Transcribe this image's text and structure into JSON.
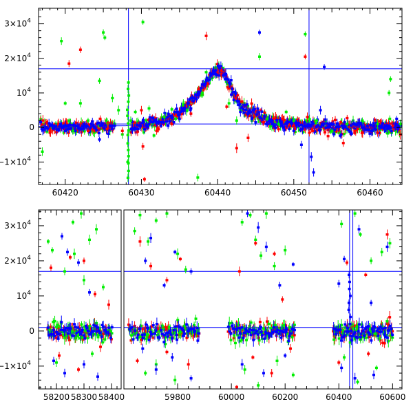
{
  "chart_data": [
    {
      "type": "scatter",
      "panel": "top",
      "xlim": [
        60416.5,
        60464.2
      ],
      "ylim": [
        -16500,
        34500
      ],
      "x_ticks": [
        60420,
        60430,
        60440,
        60450,
        60460
      ],
      "x_tick_labels": [
        "60420",
        "60430",
        "60440",
        "60450",
        "60460"
      ],
      "y_ticks": [
        -10000,
        0,
        10000,
        20000,
        30000
      ],
      "y_tick_labels": [
        {
          "mant": "−1×10",
          "exp": "4"
        },
        {
          "mant": "0",
          "exp": ""
        },
        {
          "mant": "10",
          "exp": "4"
        },
        {
          "mant": "2×10",
          "exp": "4"
        },
        {
          "mant": "3×10",
          "exp": "4"
        }
      ],
      "hlines": [
        17000,
        1000
      ],
      "vlines": [
        60428.3,
        60452.0
      ],
      "colors": {
        "g": "#00ee00",
        "r": "#ff0000",
        "b": "#0000ff"
      },
      "model_curve": [
        [
          60416.5,
          300
        ],
        [
          60428,
          500
        ],
        [
          60432,
          1500
        ],
        [
          60435,
          4500
        ],
        [
          60437.5,
          10000
        ],
        [
          60439,
          15000
        ],
        [
          60440.1,
          17200
        ],
        [
          60441,
          15500
        ],
        [
          60442.5,
          8500
        ],
        [
          60444,
          5000
        ],
        [
          60447,
          2000
        ],
        [
          60452,
          700
        ],
        [
          60464.2,
          300
        ]
      ],
      "series": [
        {
          "color": "g",
          "points": [
            [
              60417.0,
              -7000
            ],
            [
              60419.5,
              25000
            ],
            [
              60420.0,
              7000
            ],
            [
              60420.5,
              2000
            ],
            [
              60421.0,
              -1000
            ],
            [
              60422.0,
              7000
            ],
            [
              60423.0,
              2000
            ],
            [
              60424.5,
              13500
            ],
            [
              60425.0,
              27500
            ],
            [
              60425.2,
              26000
            ],
            [
              60425.4,
              2000
            ],
            [
              60426.2,
              8500
            ],
            [
              60426.5,
              1000
            ],
            [
              60427.0,
              5000
            ],
            [
              60427.5,
              -2000
            ],
            [
              60428.2,
              -10000
            ],
            [
              60428.3,
              13000
            ],
            [
              60428.6,
              2000
            ],
            [
              60429.2,
              4500
            ],
            [
              60430.2,
              30500
            ],
            [
              60431.0,
              5500
            ],
            [
              60431.5,
              1000
            ],
            [
              60433.0,
              3000
            ],
            [
              60434.5,
              2500
            ],
            [
              60436.0,
              5000
            ],
            [
              60437.4,
              -14500
            ],
            [
              60438.0,
              10000
            ],
            [
              60438.5,
              16000
            ],
            [
              60441.5,
              7000
            ],
            [
              60442.5,
              2000
            ],
            [
              60443.0,
              5000
            ],
            [
              60444.5,
              2000
            ],
            [
              60445.5,
              20500
            ],
            [
              60446.5,
              2500
            ],
            [
              60448.0,
              1000
            ],
            [
              60449.0,
              4500
            ],
            [
              60450.0,
              2000
            ],
            [
              60451.5,
              27000
            ],
            [
              60453.0,
              2000
            ],
            [
              60455.0,
              -1000
            ],
            [
              60457.0,
              1000
            ],
            [
              60459.0,
              2000
            ],
            [
              60461.0,
              1000
            ],
            [
              60462.5,
              10000
            ],
            [
              60462.7,
              14000
            ],
            [
              60462.6,
              2500
            ],
            [
              60464.0,
              1000
            ]
          ]
        },
        {
          "color": "r",
          "points": [
            [
              60418.0,
              -1500
            ],
            [
              60420.5,
              18500
            ],
            [
              60422.0,
              22500
            ],
            [
              60423.0,
              -1000
            ],
            [
              60425.5,
              -500
            ],
            [
              60427.5,
              -1000
            ],
            [
              60430.0,
              5000
            ],
            [
              60430.2,
              -5500
            ],
            [
              60430.4,
              -15000
            ],
            [
              60432.0,
              -1000
            ],
            [
              60434.0,
              1000
            ],
            [
              60436.5,
              4000
            ],
            [
              60437.5,
              11000
            ],
            [
              60438.5,
              26500
            ],
            [
              60440.5,
              16500
            ],
            [
              60441.2,
              6000
            ],
            [
              60442.5,
              -6000
            ],
            [
              60444.0,
              -3000
            ],
            [
              60446.0,
              1500
            ],
            [
              60448.0,
              -500
            ],
            [
              60450.0,
              500
            ],
            [
              60451.5,
              20500
            ],
            [
              60452.5,
              -1000
            ],
            [
              60454.5,
              -2500
            ],
            [
              60456.5,
              -4500
            ],
            [
              60458.0,
              -1000
            ],
            [
              60461.0,
              -1500
            ],
            [
              60463.0,
              500
            ]
          ]
        },
        {
          "color": "b",
          "points": [
            [
              60418.0,
              500
            ],
            [
              60420.0,
              -1000
            ],
            [
              60422.5,
              1000
            ],
            [
              60424.5,
              -3500
            ],
            [
              60426.5,
              500
            ],
            [
              60428.8,
              -500
            ],
            [
              60431.5,
              1500
            ],
            [
              60433.5,
              500
            ],
            [
              60435.0,
              2500
            ],
            [
              60436.5,
              5500
            ],
            [
              60437.5,
              9500
            ],
            [
              60438.5,
              13500
            ],
            [
              60439.5,
              16500
            ],
            [
              60440.2,
              17200
            ],
            [
              60441.0,
              14000
            ],
            [
              60441.8,
              9500
            ],
            [
              60443.0,
              4500
            ],
            [
              60444.5,
              2500
            ],
            [
              60445.5,
              27500
            ],
            [
              60446.5,
              1000
            ],
            [
              60448.5,
              500
            ],
            [
              60450.0,
              -1000
            ],
            [
              60451.0,
              -5000
            ],
            [
              60452.3,
              -8500
            ],
            [
              60452.6,
              -13000
            ],
            [
              60453.5,
              5000
            ],
            [
              60454.0,
              17500
            ],
            [
              60455.0,
              1000
            ],
            [
              60457.5,
              -1500
            ],
            [
              60460.5,
              500
            ],
            [
              60462.0,
              -1000
            ],
            [
              60463.5,
              2500
            ]
          ]
        }
      ]
    },
    {
      "type": "scatter",
      "panel": "bottom",
      "segments": [
        {
          "xlim": [
            58135,
            58435
          ],
          "x_ticks": [
            58200,
            58300,
            58400
          ],
          "x_tick_labels": [
            "58200",
            "58300",
            "58400"
          ]
        },
        {
          "xlim": [
            59600,
            60635
          ],
          "x_ticks": [
            59800,
            60000,
            60200,
            60400,
            60600
          ],
          "x_tick_labels": [
            "59800",
            "60000",
            "60200",
            "60400",
            "60600"
          ]
        }
      ],
      "ylim": [
        -16500,
        34500
      ],
      "y_ticks": [
        -10000,
        0,
        10000,
        20000,
        30000
      ],
      "y_tick_labels": [
        {
          "mant": "−1×10",
          "exp": "4"
        },
        {
          "mant": "0",
          "exp": ""
        },
        {
          "mant": "10",
          "exp": "4"
        },
        {
          "mant": "2×10",
          "exp": "4"
        },
        {
          "mant": "3×10",
          "exp": "4"
        }
      ],
      "hlines": [
        17000,
        1000
      ],
      "vlines": [
        60440,
        60452
      ],
      "colors": {
        "g": "#00ee00",
        "r": "#ff0000",
        "b": "#0000ff"
      },
      "seasons": [
        [
          58170,
          58400
        ],
        [
          59620,
          59880
        ],
        [
          59990,
          60240
        ],
        [
          60380,
          60600
        ]
      ],
      "spike": {
        "x": 60440,
        "peak": 17000
      },
      "outliers": [
        {
          "color": "g",
          "points": [
            [
              58170,
              25500
            ],
            [
              58185,
              23000
            ],
            [
              58230,
              17000
            ],
            [
              58260,
              31000
            ],
            [
              58265,
              22000
            ],
            [
              58290,
              33500
            ],
            [
              58300,
              14500
            ],
            [
              58320,
              26000
            ],
            [
              58345,
              29000
            ],
            [
              58370,
              12500
            ],
            [
              59640,
              28500
            ],
            [
              59660,
              33000
            ],
            [
              59690,
              25500
            ],
            [
              59720,
              31500
            ],
            [
              59760,
              33500
            ],
            [
              59800,
              22000
            ],
            [
              59830,
              17500
            ],
            [
              60040,
              31000
            ],
            [
              60070,
              33000
            ],
            [
              60090,
              26000
            ],
            [
              60110,
              21500
            ],
            [
              60130,
              33500
            ],
            [
              60160,
              18500
            ],
            [
              60200,
              23000
            ],
            [
              60410,
              30500
            ],
            [
              60460,
              33500
            ],
            [
              60480,
              27500
            ],
            [
              60520,
              20000
            ],
            [
              60560,
              22500
            ],
            [
              60590,
              25000
            ],
            [
              58200,
              -9000
            ],
            [
              58330,
              -6500
            ],
            [
              59680,
              -12000
            ],
            [
              59720,
              -9500
            ],
            [
              59790,
              -14000
            ],
            [
              60050,
              -11000
            ],
            [
              60100,
              -15500
            ],
            [
              60170,
              -8500
            ],
            [
              60230,
              -12500
            ],
            [
              60420,
              -7500
            ],
            [
              60470,
              -14500
            ],
            [
              60540,
              -10500
            ]
          ]
        },
        {
          "color": "r",
          "points": [
            [
              58180,
              18000
            ],
            [
              58250,
              21000
            ],
            [
              58300,
              20000
            ],
            [
              58340,
              10500
            ],
            [
              58390,
              7500
            ],
            [
              59660,
              25500
            ],
            [
              59700,
              18500
            ],
            [
              59760,
              14500
            ],
            [
              59810,
              20500
            ],
            [
              60030,
              17000
            ],
            [
              60090,
              25000
            ],
            [
              60160,
              22000
            ],
            [
              60190,
              9000
            ],
            [
              60430,
              19500
            ],
            [
              60500,
              16000
            ],
            [
              60580,
              27500
            ],
            [
              58210,
              -7000
            ],
            [
              58280,
              -11000
            ],
            [
              58360,
              -4500
            ],
            [
              59650,
              -8500
            ],
            [
              59760,
              -6000
            ],
            [
              59840,
              -9500
            ],
            [
              60020,
              -16000
            ],
            [
              60080,
              -7500
            ],
            [
              60150,
              -12000
            ],
            [
              60220,
              -5000
            ],
            [
              60400,
              -9000
            ],
            [
              60510,
              -6500
            ],
            [
              60570,
              -3500
            ]
          ]
        },
        {
          "color": "b",
          "points": [
            [
              58220,
              27000
            ],
            [
              58240,
              22500
            ],
            [
              58280,
              19500
            ],
            [
              58320,
              11000
            ],
            [
              59680,
              20000
            ],
            [
              59700,
              26500
            ],
            [
              59750,
              13000
            ],
            [
              59790,
              22500
            ],
            [
              59850,
              17000
            ],
            [
              60060,
              33500
            ],
            [
              60100,
              29500
            ],
            [
              60130,
              24000
            ],
            [
              60180,
              13000
            ],
            [
              60230,
              19000
            ],
            [
              60400,
              13500
            ],
            [
              60420,
              20500
            ],
            [
              60475,
              29000
            ],
            [
              60520,
              8000
            ],
            [
              60580,
              24000
            ],
            [
              58190,
              -8500
            ],
            [
              58230,
              -12000
            ],
            [
              58300,
              -9500
            ],
            [
              58350,
              -13000
            ],
            [
              59670,
              -5000
            ],
            [
              59720,
              -11000
            ],
            [
              59780,
              -7500
            ],
            [
              59850,
              -13500
            ],
            [
              60040,
              -9500
            ],
            [
              60120,
              -12000
            ],
            [
              60200,
              -7000
            ],
            [
              60410,
              -10500
            ],
            [
              60460,
              -13500
            ],
            [
              60530,
              -12500
            ]
          ]
        }
      ]
    }
  ]
}
